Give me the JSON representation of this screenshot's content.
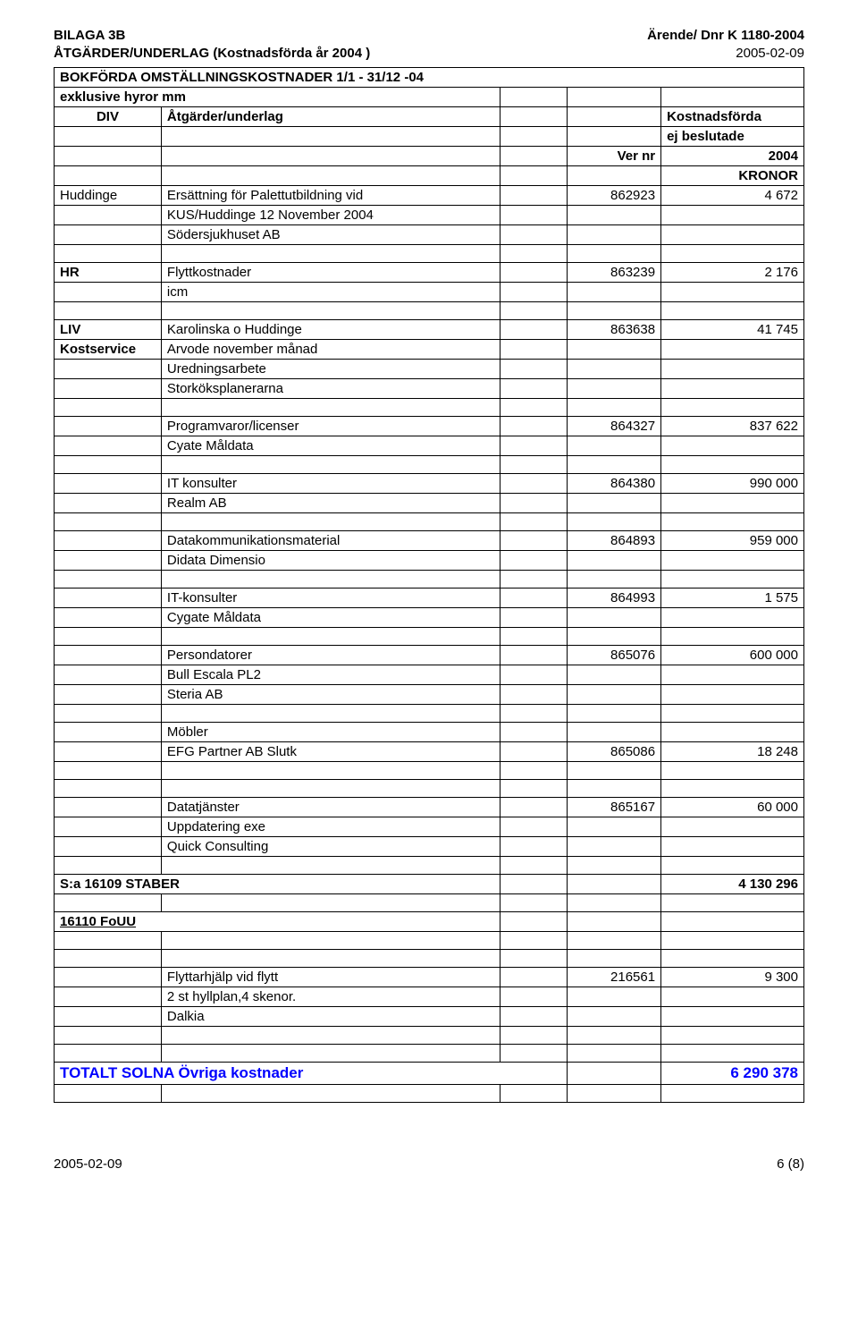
{
  "header": {
    "left_line1": "BILAGA 3B",
    "left_line2": "ÅTGÄRDER/UNDERLAG (Kostnadsförda år 2004 )",
    "right_line1": "Ärende/ Dnr K 1180-2004",
    "right_line2": "2005-02-09"
  },
  "title_rows": {
    "title1": "BOKFÖRDA OMSTÄLLNINGSKOSTNADER 1/1 - 31/12 -04",
    "title2": "exklusive hyror mm",
    "div": "DIV",
    "atgarder": "Åtgärder/underlag",
    "kostnadsforda": "Kostnadsförda",
    "ej_beslutade": "ej beslutade",
    "ver_nr": "Ver nr",
    "year": "2004",
    "kronor": "KRONOR"
  },
  "rows": [
    {
      "c1": "Huddinge",
      "c2": "Ersättning för Palettutbildning vid",
      "c4": "862923",
      "c5": "4 672",
      "thick_top": true
    },
    {
      "c2": "KUS/Huddinge 12 November 2004"
    },
    {
      "c2": "Södersjukhuset AB"
    },
    {
      "blank": true
    },
    {
      "c1": "HR",
      "c2": "Flyttkostnader",
      "c4": "863239",
      "c5": "2 176",
      "c1b": true
    },
    {
      "c2": "icm"
    },
    {
      "blank": true
    },
    {
      "c1": "LIV",
      "c2": "Karolinska o Huddinge",
      "c4": "863638",
      "c5": "41 745",
      "c1b": true
    },
    {
      "c1": "Kostservice",
      "c2": "Arvode november månad",
      "c1b": true
    },
    {
      "c2": "Uredningsarbete"
    },
    {
      "c2": "Storköksplanerarna"
    },
    {
      "blank": true
    },
    {
      "c2": "Programvaror/licenser",
      "c4": "864327",
      "c5": "837 622"
    },
    {
      "c2": "Cyate Måldata"
    },
    {
      "blank": true
    },
    {
      "c2": "IT konsulter",
      "c4": "864380",
      "c5": "990 000"
    },
    {
      "c2": "Realm AB"
    },
    {
      "blank": true
    },
    {
      "c2": "Datakommunikationsmaterial",
      "c4": "864893",
      "c5": "959 000"
    },
    {
      "c2": "Didata Dimensio"
    },
    {
      "blank": true
    },
    {
      "c2": "IT-konsulter",
      "c4": "864993",
      "c5": "1 575"
    },
    {
      "c2": "Cygate Måldata"
    },
    {
      "blank": true
    },
    {
      "c2": "Persondatorer",
      "c4": "865076",
      "c5": "600 000"
    },
    {
      "c2": "Bull Escala PL2"
    },
    {
      "c2": "Steria AB"
    },
    {
      "blank": true
    },
    {
      "c2": "Möbler"
    },
    {
      "c2": "EFG Partner AB Slutk",
      "c4": "865086",
      "c5": "18 248"
    },
    {
      "blank": true
    },
    {
      "blank": true
    },
    {
      "c2": "Datatjänster",
      "c4": "865167",
      "c5": "60 000"
    },
    {
      "c2": "Uppdatering exe"
    },
    {
      "c2": "Quick Consulting"
    },
    {
      "blank": true
    }
  ],
  "subtotal": {
    "label": "S:a 16109 STABER",
    "value": "4 130 296"
  },
  "fouu": {
    "label": "16110 FoUU"
  },
  "post_rows": [
    {
      "blank": true
    },
    {
      "blank": true
    },
    {
      "c2": "Flyttarhjälp vid flytt",
      "c4": "216561",
      "c5": "9 300"
    },
    {
      "c2": "2 st hyllplan,4 skenor."
    },
    {
      "c2": "Dalkia"
    },
    {
      "blank": true
    },
    {
      "blank": true
    }
  ],
  "total": {
    "label": "TOTALT SOLNA Övriga kostnader",
    "value": "6 290 378"
  },
  "footer": {
    "left": "2005-02-09",
    "right": "6 (8)"
  },
  "style": {
    "font_size": 15,
    "blue_color": "#0000ff",
    "border_color": "#000000"
  }
}
